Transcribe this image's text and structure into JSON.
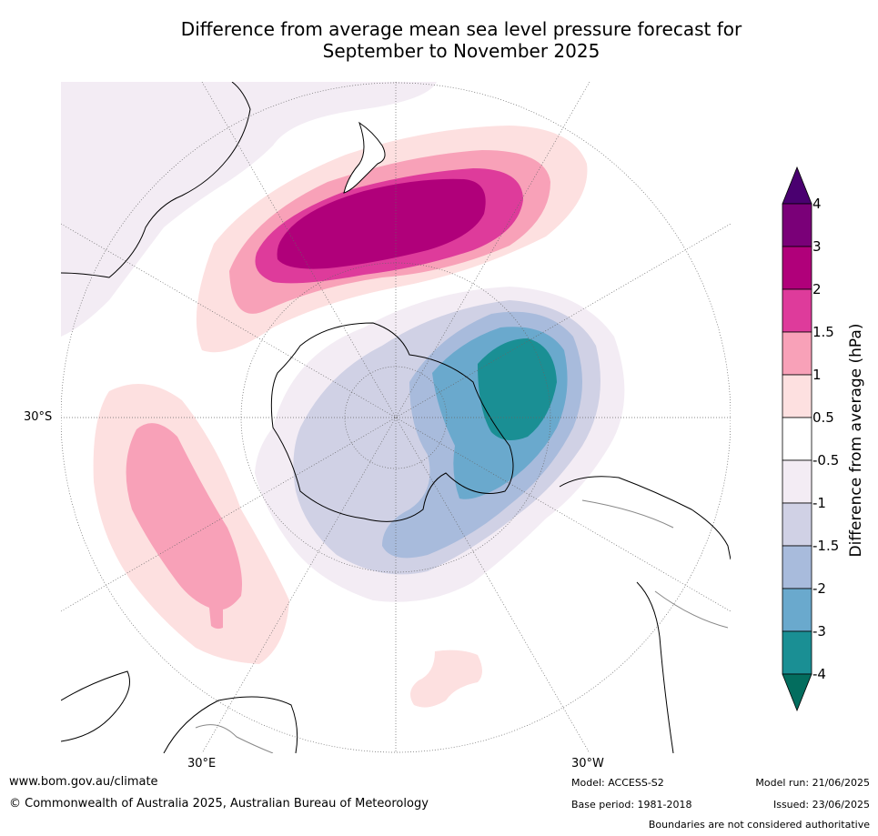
{
  "title": {
    "line1": "Difference from average mean sea level pressure forecast for",
    "line2": "September to November 2025"
  },
  "map": {
    "projection": "south-polar-stereographic",
    "graticule_labels": {
      "lat": "30°S",
      "lon_east": "30°E",
      "lon_west": "30°W"
    },
    "palette": {
      "p0_5_1": "#fde0e0",
      "p1_1_5": "#f8a1b8",
      "p1_5_2": "#de3b9b",
      "p2_3": "#b0007a",
      "p3_4": "#7a0078",
      "n0_5_1": "#f3ecf4",
      "n1_1_5": "#d0d1e5",
      "n1_5_2": "#a8bbdc",
      "n2_3": "#6aa9cd",
      "n3_4": "#1a8f94",
      "n_lt4": "#036d5e"
    }
  },
  "colorbar": {
    "title": "Difference from average (hPa)",
    "ticks": [
      "4",
      "3",
      "2",
      "1.5",
      "1",
      "0.5",
      "-0.5",
      "-1",
      "-1.5",
      "-2",
      "-3",
      "-4"
    ],
    "colors": [
      "#7a0078",
      "#b0007a",
      "#de3b9b",
      "#f8a1b8",
      "#fde0e0",
      "#ffffff",
      "#f3ecf4",
      "#d0d1e5",
      "#a8bbdc",
      "#6aa9cd",
      "#1a8f94"
    ],
    "over_color": "#4a0070",
    "under_color": "#036d5e"
  },
  "footer": {
    "url": "www.bom.gov.au/climate",
    "copyright": "© Commonwealth of Australia 2025, Australian Bureau of Meteorology",
    "model": "Model: ACCESS-S2",
    "base_period": "Base period: 1981-2018",
    "model_run": "Model run: 21/06/2025",
    "issued": "Issued: 23/06/2025",
    "disclaimer": "Boundaries are not considered authoritative"
  }
}
